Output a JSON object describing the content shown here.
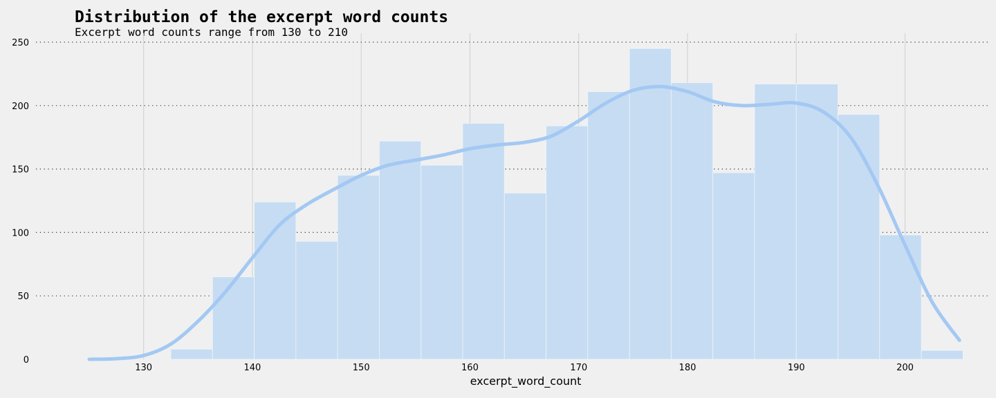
{
  "chart_data": {
    "type": "bar",
    "title": "Distribution of the excerpt word counts",
    "subtitle": "Excerpt word counts range from 130 to 210",
    "xlabel": "excerpt_word_count",
    "ylabel": "",
    "xlim": [
      120.1,
      207.6
    ],
    "ylim": [
      0,
      250
    ],
    "x_ticks": [
      130,
      140,
      150,
      160,
      170,
      180,
      190,
      200
    ],
    "y_ticks": [
      0,
      50,
      100,
      150,
      200,
      250
    ],
    "grid": true,
    "bins": {
      "start": 132.5,
      "width": 3.8333,
      "counts": [
        8,
        65,
        124,
        93,
        145,
        172,
        153,
        186,
        131,
        184,
        211,
        245,
        218,
        147,
        217,
        217,
        193,
        98,
        7
      ]
    },
    "kde": {
      "x": [
        125,
        127.5,
        130,
        132.5,
        135,
        137.5,
        140,
        142.5,
        145,
        147.5,
        150,
        152.5,
        155,
        157.5,
        160,
        162.5,
        165,
        167.5,
        170,
        172.5,
        175,
        177.5,
        180,
        182.5,
        185,
        187.5,
        190,
        192.5,
        195,
        197.5,
        200,
        202.5,
        205
      ],
      "y": [
        0,
        0.5,
        3,
        12,
        30,
        53,
        80,
        106,
        122,
        134,
        145,
        153,
        157,
        161,
        166,
        169,
        171,
        176,
        188,
        202,
        212,
        215,
        211,
        203,
        200,
        201,
        202,
        195,
        175,
        137,
        90,
        45,
        15
      ]
    },
    "colors": {
      "bar": "#c6dcf2",
      "kde": "#a3c8f3",
      "background": "#f0f0f0",
      "grid": "#cfcfcf"
    }
  }
}
